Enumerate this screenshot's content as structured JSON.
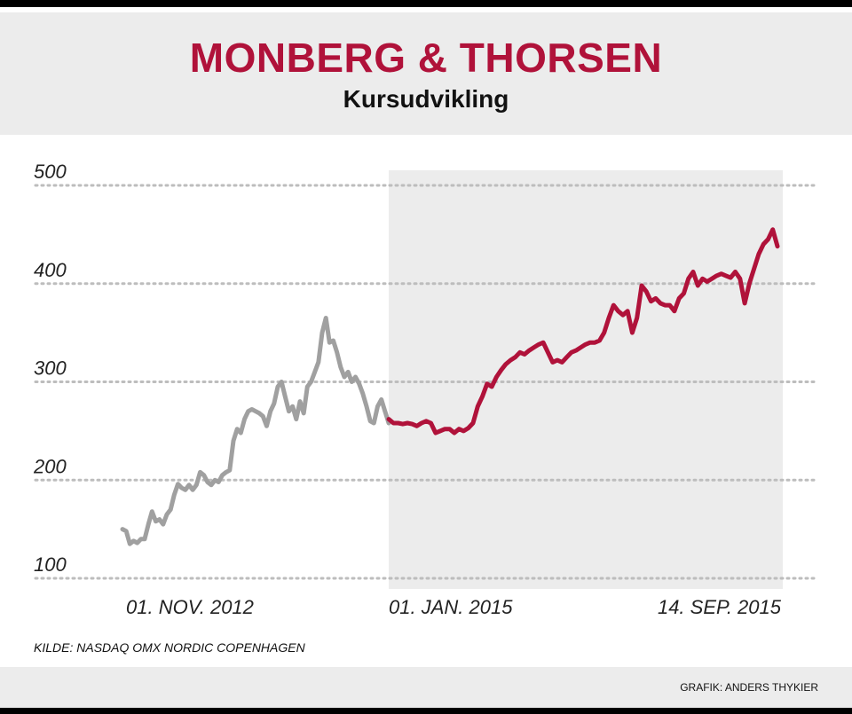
{
  "header": {
    "title": "MONBERG & THORSEN",
    "subtitle": "Kursudvikling"
  },
  "footer": {
    "source": "KILDE: NASDAQ OMX NORDIC COPENHAGEN",
    "credit": "GRAFIK: ANDERS THYKIER"
  },
  "chart_data": {
    "type": "line",
    "title": "MONBERG & THORSEN",
    "subtitle": "Kursudvikling",
    "ylim": [
      100,
      500
    ],
    "yticks": [
      100,
      200,
      300,
      400,
      500
    ],
    "grid": true,
    "grid_style": "dotted",
    "x_tick_labels": [
      "01. NOV. 2012",
      "01. JAN. 2015",
      "14. SEP. 2015"
    ],
    "highlight_region": {
      "from": "01. JAN. 2015",
      "to": "14. SEP. 2015",
      "color": "#ececec"
    },
    "colors": {
      "history": "#a0a0a0",
      "highlight": "#b0123a"
    },
    "series": [
      {
        "segment": "history",
        "values": [
          150,
          148,
          135,
          138,
          136,
          140,
          140,
          155,
          168,
          158,
          160,
          155,
          165,
          170,
          185,
          196,
          192,
          190,
          195,
          190,
          195,
          208,
          205,
          198,
          195,
          200,
          198,
          205,
          208,
          210,
          240,
          252,
          248,
          262,
          270,
          272,
          270,
          268,
          265,
          255,
          270,
          278,
          295,
          300,
          285,
          270,
          275,
          262,
          280,
          268,
          295,
          300,
          310,
          320,
          350,
          365,
          340,
          342,
          330,
          315,
          305,
          310,
          300,
          305,
          298,
          288,
          275,
          260,
          258,
          275,
          282,
          270,
          258
        ]
      },
      {
        "segment": "highlight",
        "values": [
          262,
          258,
          258,
          257,
          258,
          257,
          255,
          258,
          260,
          258,
          248,
          250,
          252,
          252,
          248,
          252,
          250,
          253,
          258,
          275,
          285,
          298,
          295,
          305,
          312,
          318,
          322,
          325,
          330,
          328,
          332,
          335,
          338,
          340,
          330,
          320,
          322,
          320,
          325,
          330,
          332,
          335,
          338,
          340,
          340,
          342,
          350,
          365,
          378,
          372,
          368,
          372,
          350,
          365,
          398,
          392,
          382,
          385,
          380,
          378,
          378,
          372,
          385,
          390,
          405,
          412,
          398,
          405,
          402,
          405,
          408,
          410,
          408,
          406,
          412,
          405,
          380,
          400,
          415,
          430,
          440,
          445,
          455,
          438
        ]
      }
    ]
  }
}
